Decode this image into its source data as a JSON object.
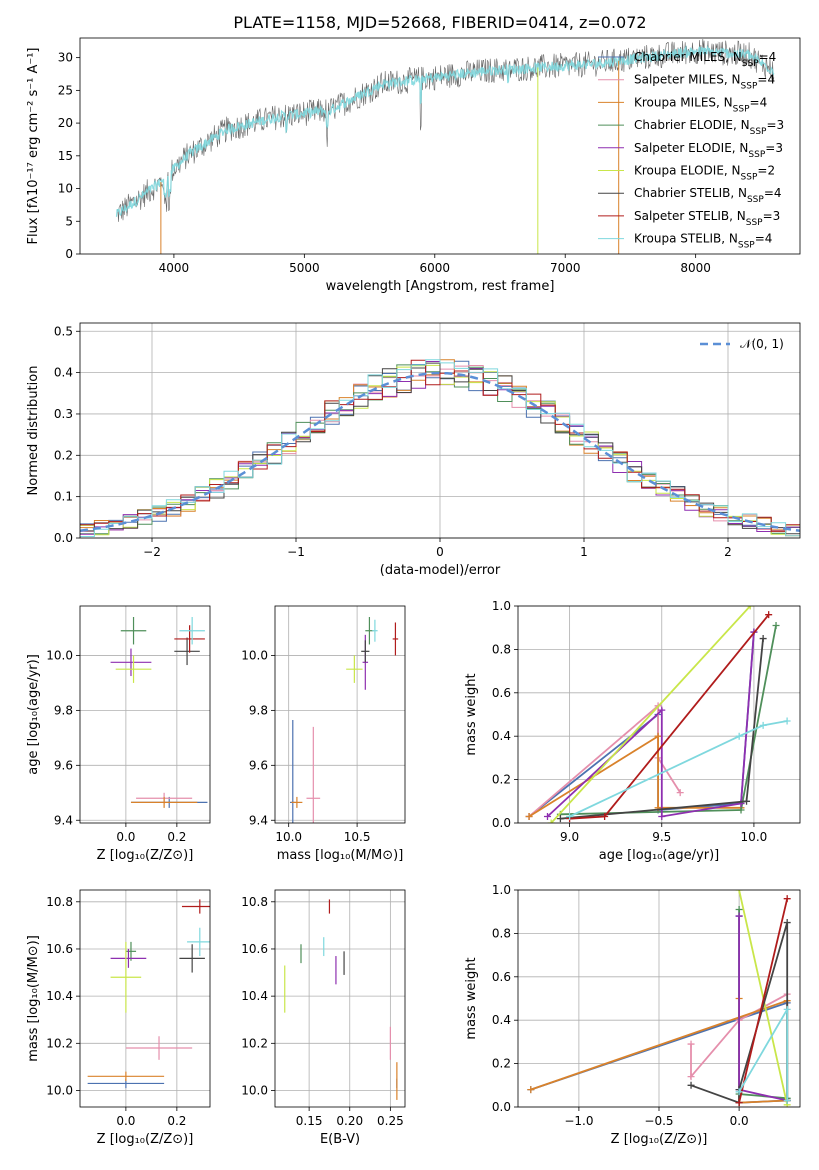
{
  "figure_title": "PLATE=1158, MJD=52668, FIBERID=0414, z=0.072",
  "models": [
    {
      "name": "Chabrier MILES",
      "nssp": "4",
      "color": "#4c72b0"
    },
    {
      "name": "Salpeter MILES",
      "nssp": "4",
      "color": "#e58fac"
    },
    {
      "name": "Kroupa MILES",
      "nssp": "4",
      "color": "#d9822b"
    },
    {
      "name": "Chabrier ELODIE",
      "nssp": "3",
      "color": "#4f8f5a"
    },
    {
      "name": "Salpeter ELODIE",
      "nssp": "3",
      "color": "#8e2fb0"
    },
    {
      "name": "Kroupa ELODIE",
      "nssp": "2",
      "color": "#c9e64a"
    },
    {
      "name": "Chabrier STELIB",
      "nssp": "4",
      "color": "#444444"
    },
    {
      "name": "Salpeter STELIB",
      "nssp": "3",
      "color": "#b01c1c"
    },
    {
      "name": "Kroupa STELIB",
      "nssp": "4",
      "color": "#7fd8de"
    }
  ],
  "chart_data": [
    {
      "id": "spectrum",
      "type": "line",
      "xlabel": "wavelength [Angstrom, rest frame]",
      "ylabel": "Flux [fλ10⁻¹⁷ erg cm⁻² s⁻¹ A⁻¹]",
      "xlim": [
        3280,
        8800
      ],
      "ylim": [
        0,
        33
      ],
      "xticks": [
        4000,
        5000,
        6000,
        7000,
        8000
      ],
      "yticks": [
        0,
        5,
        10,
        15,
        20,
        25,
        30
      ],
      "continuum": [
        [
          3560,
          6
        ],
        [
          3700,
          8
        ],
        [
          3900,
          11
        ],
        [
          4100,
          15
        ],
        [
          4400,
          19
        ],
        [
          4800,
          21
        ],
        [
          5200,
          22
        ],
        [
          5600,
          26
        ],
        [
          6000,
          27
        ],
        [
          6400,
          28
        ],
        [
          6800,
          28.5
        ],
        [
          7200,
          29
        ],
        [
          7600,
          30
        ],
        [
          8000,
          31
        ],
        [
          8400,
          30.5
        ],
        [
          8600,
          28
        ]
      ],
      "legend_position": "upper right"
    },
    {
      "id": "residuals",
      "type": "line",
      "xlabel": "(data-model)/error",
      "ylabel": "Normed distribution",
      "xlim": [
        -2.5,
        2.5
      ],
      "ylim": [
        0,
        0.52
      ],
      "xticks": [
        -2,
        -1,
        0,
        1,
        2
      ],
      "yticks": [
        0.0,
        0.1,
        0.2,
        0.3,
        0.4,
        0.5
      ],
      "gaussian_label": "𝒩(0, 1)",
      "legend_position": "upper right",
      "grid": true
    },
    {
      "id": "z_age",
      "type": "scatter",
      "xlabel": "Z [log₁₀(Z/Z⊙)]",
      "ylabel": "age  [log₁₀(age/yr)]",
      "xlim": [
        -0.18,
        0.33
      ],
      "ylim": [
        9.39,
        10.18
      ],
      "xticks": [
        0.0,
        0.2
      ],
      "yticks": [
        9.4,
        9.6,
        9.8,
        10.0
      ],
      "points": [
        {
          "m": 0,
          "x": 0.17,
          "y": 9.465,
          "xerr": 0.15,
          "yerr": 0.02
        },
        {
          "m": 1,
          "x": 0.15,
          "y": 9.48,
          "xerr": 0.11,
          "yerr": 0.02
        },
        {
          "m": 2,
          "x": 0.15,
          "y": 9.465,
          "xerr": 0.13,
          "yerr": 0.02
        },
        {
          "m": 3,
          "x": 0.03,
          "y": 10.09,
          "xerr": 0.05,
          "yerr": 0.05
        },
        {
          "m": 4,
          "x": 0.02,
          "y": 9.975,
          "xerr": 0.08,
          "yerr": 0.05
        },
        {
          "m": 5,
          "x": 0.03,
          "y": 9.95,
          "xerr": 0.07,
          "yerr": 0.05
        },
        {
          "m": 6,
          "x": 0.24,
          "y": 10.015,
          "xerr": 0.05,
          "yerr": 0.05
        },
        {
          "m": 7,
          "x": 0.25,
          "y": 10.06,
          "xerr": 0.06,
          "yerr": 0.05
        },
        {
          "m": 8,
          "x": 0.26,
          "y": 10.09,
          "xerr": 0.05,
          "yerr": 0.05
        }
      ]
    },
    {
      "id": "mass_age",
      "type": "scatter",
      "xlabel": "mass [log₁₀(M/M⊙)]",
      "ylabel": "",
      "xlim": [
        9.9,
        10.85
      ],
      "ylim": [
        9.39,
        10.18
      ],
      "xticks": [
        10.0,
        10.5
      ],
      "yticks": [
        9.4,
        9.6,
        9.8,
        10.0
      ],
      "points": [
        {
          "m": 0,
          "x": 10.03,
          "y": 9.465,
          "xerr": 0.02,
          "yerr": 0.3
        },
        {
          "m": 1,
          "x": 10.18,
          "y": 9.48,
          "xerr": 0.05,
          "yerr": 0.26
        },
        {
          "m": 2,
          "x": 10.06,
          "y": 9.465,
          "xerr": 0.04,
          "yerr": 0.02
        },
        {
          "m": 3,
          "x": 10.59,
          "y": 10.09,
          "xerr": 0.03,
          "yerr": 0.05
        },
        {
          "m": 4,
          "x": 10.56,
          "y": 9.975,
          "xerr": 0.02,
          "yerr": 0.1
        },
        {
          "m": 5,
          "x": 10.48,
          "y": 9.95,
          "xerr": 0.06,
          "yerr": 0.05
        },
        {
          "m": 6,
          "x": 10.56,
          "y": 10.015,
          "xerr": 0.03,
          "yerr": 0.04
        },
        {
          "m": 7,
          "x": 10.78,
          "y": 10.06,
          "xerr": 0.02,
          "yerr": 0.06
        },
        {
          "m": 8,
          "x": 10.63,
          "y": 10.09,
          "xerr": 0.02,
          "yerr": 0.04
        }
      ]
    },
    {
      "id": "age_weight",
      "type": "line",
      "xlabel": "age  [log₁₀(age/yr)]",
      "ylabel": "mass weight",
      "xlim": [
        8.72,
        10.25
      ],
      "ylim": [
        0,
        1.0
      ],
      "xticks": [
        9.0,
        9.5,
        10.0
      ],
      "yticks": [
        0.0,
        0.2,
        0.4,
        0.6,
        0.8,
        1.0
      ],
      "grid": true,
      "paths": [
        {
          "m": 0,
          "pts": [
            [
              8.78,
              0.03
            ],
            [
              9.48,
              0.5
            ],
            [
              9.48,
              0.06
            ],
            [
              9.93,
              0.09
            ],
            [
              10.0,
              0.88
            ]
          ]
        },
        {
          "m": 1,
          "pts": [
            [
              8.78,
              0.03
            ],
            [
              9.48,
              0.54
            ],
            [
              9.48,
              0.3
            ],
            [
              9.6,
              0.14
            ]
          ]
        },
        {
          "m": 2,
          "pts": [
            [
              8.78,
              0.03
            ],
            [
              9.48,
              0.4
            ],
            [
              9.48,
              0.07
            ],
            [
              9.93,
              0.07
            ]
          ]
        },
        {
          "m": 3,
          "pts": [
            [
              8.95,
              0.04
            ],
            [
              9.93,
              0.06
            ],
            [
              10.12,
              0.91
            ]
          ]
        },
        {
          "m": 4,
          "pts": [
            [
              8.88,
              0.03
            ],
            [
              9.5,
              0.52
            ],
            [
              9.5,
              0.03
            ],
            [
              9.93,
              0.09
            ],
            [
              10.0,
              0.88
            ]
          ]
        },
        {
          "m": 5,
          "pts": [
            [
              8.9,
              0.0
            ],
            [
              9.98,
              1.0
            ]
          ]
        },
        {
          "m": 6,
          "pts": [
            [
              8.95,
              0.02
            ],
            [
              9.96,
              0.1
            ],
            [
              10.05,
              0.85
            ]
          ]
        },
        {
          "m": 7,
          "pts": [
            [
              9.0,
              0.02
            ],
            [
              9.19,
              0.03
            ],
            [
              10.08,
              0.96
            ]
          ]
        },
        {
          "m": 8,
          "pts": [
            [
              9.0,
              0.03
            ],
            [
              9.92,
              0.4
            ],
            [
              10.05,
              0.45
            ],
            [
              10.18,
              0.47
            ]
          ]
        }
      ]
    },
    {
      "id": "z_mass",
      "type": "scatter",
      "xlabel": "Z [log₁₀(Z/Z⊙)]",
      "ylabel": "mass [log₁₀(M/M⊙)]",
      "xlim": [
        -0.18,
        0.33
      ],
      "ylim": [
        9.93,
        10.85
      ],
      "xticks": [
        0.0,
        0.2
      ],
      "yticks": [
        10.0,
        10.2,
        10.4,
        10.6,
        10.8
      ],
      "points": [
        {
          "m": 0,
          "x": 0.0,
          "y": 10.03,
          "xerr": 0.15,
          "yerr": 0.02
        },
        {
          "m": 1,
          "x": 0.13,
          "y": 10.18,
          "xerr": 0.13,
          "yerr": 0.05
        },
        {
          "m": 2,
          "x": 0.0,
          "y": 10.06,
          "xerr": 0.15,
          "yerr": 0.02
        },
        {
          "m": 3,
          "x": 0.02,
          "y": 10.59,
          "xerr": 0.02,
          "yerr": 0.04
        },
        {
          "m": 4,
          "x": 0.01,
          "y": 10.56,
          "xerr": 0.07,
          "yerr": 0.04
        },
        {
          "m": 5,
          "x": 0.0,
          "y": 10.48,
          "xerr": 0.06,
          "yerr": 0.15
        },
        {
          "m": 6,
          "x": 0.26,
          "y": 10.56,
          "xerr": 0.05,
          "yerr": 0.06
        },
        {
          "m": 7,
          "x": 0.29,
          "y": 10.78,
          "xerr": 0.07,
          "yerr": 0.03
        },
        {
          "m": 8,
          "x": 0.29,
          "y": 10.63,
          "xerr": 0.05,
          "yerr": 0.06
        }
      ]
    },
    {
      "id": "ebv_mass",
      "type": "scatter",
      "xlabel": "E(B-V)",
      "ylabel": "",
      "xlim": [
        0.108,
        0.268
      ],
      "ylim": [
        9.93,
        10.85
      ],
      "xticks": [
        0.15,
        0.2,
        0.25
      ],
      "yticks": [
        10.0,
        10.2,
        10.4,
        10.6,
        10.8
      ],
      "points": [
        {
          "m": 0,
          "x": 0.258,
          "y": 10.03,
          "yerr": 0.02
        },
        {
          "m": 1,
          "x": 0.25,
          "y": 10.2,
          "yerr": 0.07
        },
        {
          "m": 2,
          "x": 0.258,
          "y": 10.04,
          "yerr": 0.08
        },
        {
          "m": 3,
          "x": 0.14,
          "y": 10.58,
          "yerr": 0.04
        },
        {
          "m": 4,
          "x": 0.183,
          "y": 10.51,
          "yerr": 0.06
        },
        {
          "m": 5,
          "x": 0.12,
          "y": 10.43,
          "yerr": 0.1
        },
        {
          "m": 6,
          "x": 0.193,
          "y": 10.54,
          "yerr": 0.05
        },
        {
          "m": 7,
          "x": 0.175,
          "y": 10.78,
          "yerr": 0.03
        },
        {
          "m": 8,
          "x": 0.168,
          "y": 10.61,
          "yerr": 0.04
        }
      ]
    },
    {
      "id": "z_weight",
      "type": "line",
      "xlabel": "Z [log₁₀(Z/Z⊙)]",
      "ylabel": "mass weight",
      "xlim": [
        -1.38,
        0.38
      ],
      "ylim": [
        0,
        1.0
      ],
      "xticks": [
        -1.0,
        -0.5,
        0.0
      ],
      "yticks": [
        0.0,
        0.2,
        0.4,
        0.6,
        0.8,
        1.0
      ],
      "grid": true,
      "paths": [
        {
          "m": 0,
          "pts": [
            [
              -1.3,
              0.08
            ],
            [
              0.3,
              0.48
            ],
            [
              0.3,
              0.03
            ],
            [
              0.0,
              0.02
            ],
            [
              0.0,
              0.88
            ]
          ]
        },
        {
          "m": 1,
          "pts": [
            [
              -0.3,
              0.29
            ],
            [
              -0.3,
              0.14
            ],
            [
              0.0,
              0.4
            ],
            [
              0.3,
              0.52
            ]
          ]
        },
        {
          "m": 2,
          "pts": [
            [
              -1.3,
              0.08
            ],
            [
              0.3,
              0.49
            ],
            [
              0.3,
              0.03
            ],
            [
              0.0,
              0.02
            ],
            [
              0.0,
              0.5
            ]
          ]
        },
        {
          "m": 3,
          "pts": [
            [
              0.0,
              0.91
            ],
            [
              0.0,
              0.06
            ],
            [
              0.3,
              0.04
            ]
          ]
        },
        {
          "m": 4,
          "pts": [
            [
              0.0,
              0.88
            ],
            [
              0.0,
              0.08
            ],
            [
              0.3,
              0.03
            ]
          ]
        },
        {
          "m": 5,
          "pts": [
            [
              0.0,
              1.0
            ],
            [
              0.3,
              0.01
            ]
          ]
        },
        {
          "m": 6,
          "pts": [
            [
              -0.3,
              0.1
            ],
            [
              0.0,
              0.02
            ],
            [
              0.0,
              0.08
            ],
            [
              0.3,
              0.85
            ],
            [
              0.3,
              0.03
            ]
          ]
        },
        {
          "m": 7,
          "pts": [
            [
              0.0,
              0.02
            ],
            [
              0.3,
              0.96
            ]
          ]
        },
        {
          "m": 8,
          "pts": [
            [
              0.0,
              0.07
            ],
            [
              0.3,
              0.45
            ],
            [
              0.3,
              0.03
            ]
          ]
        }
      ]
    }
  ]
}
